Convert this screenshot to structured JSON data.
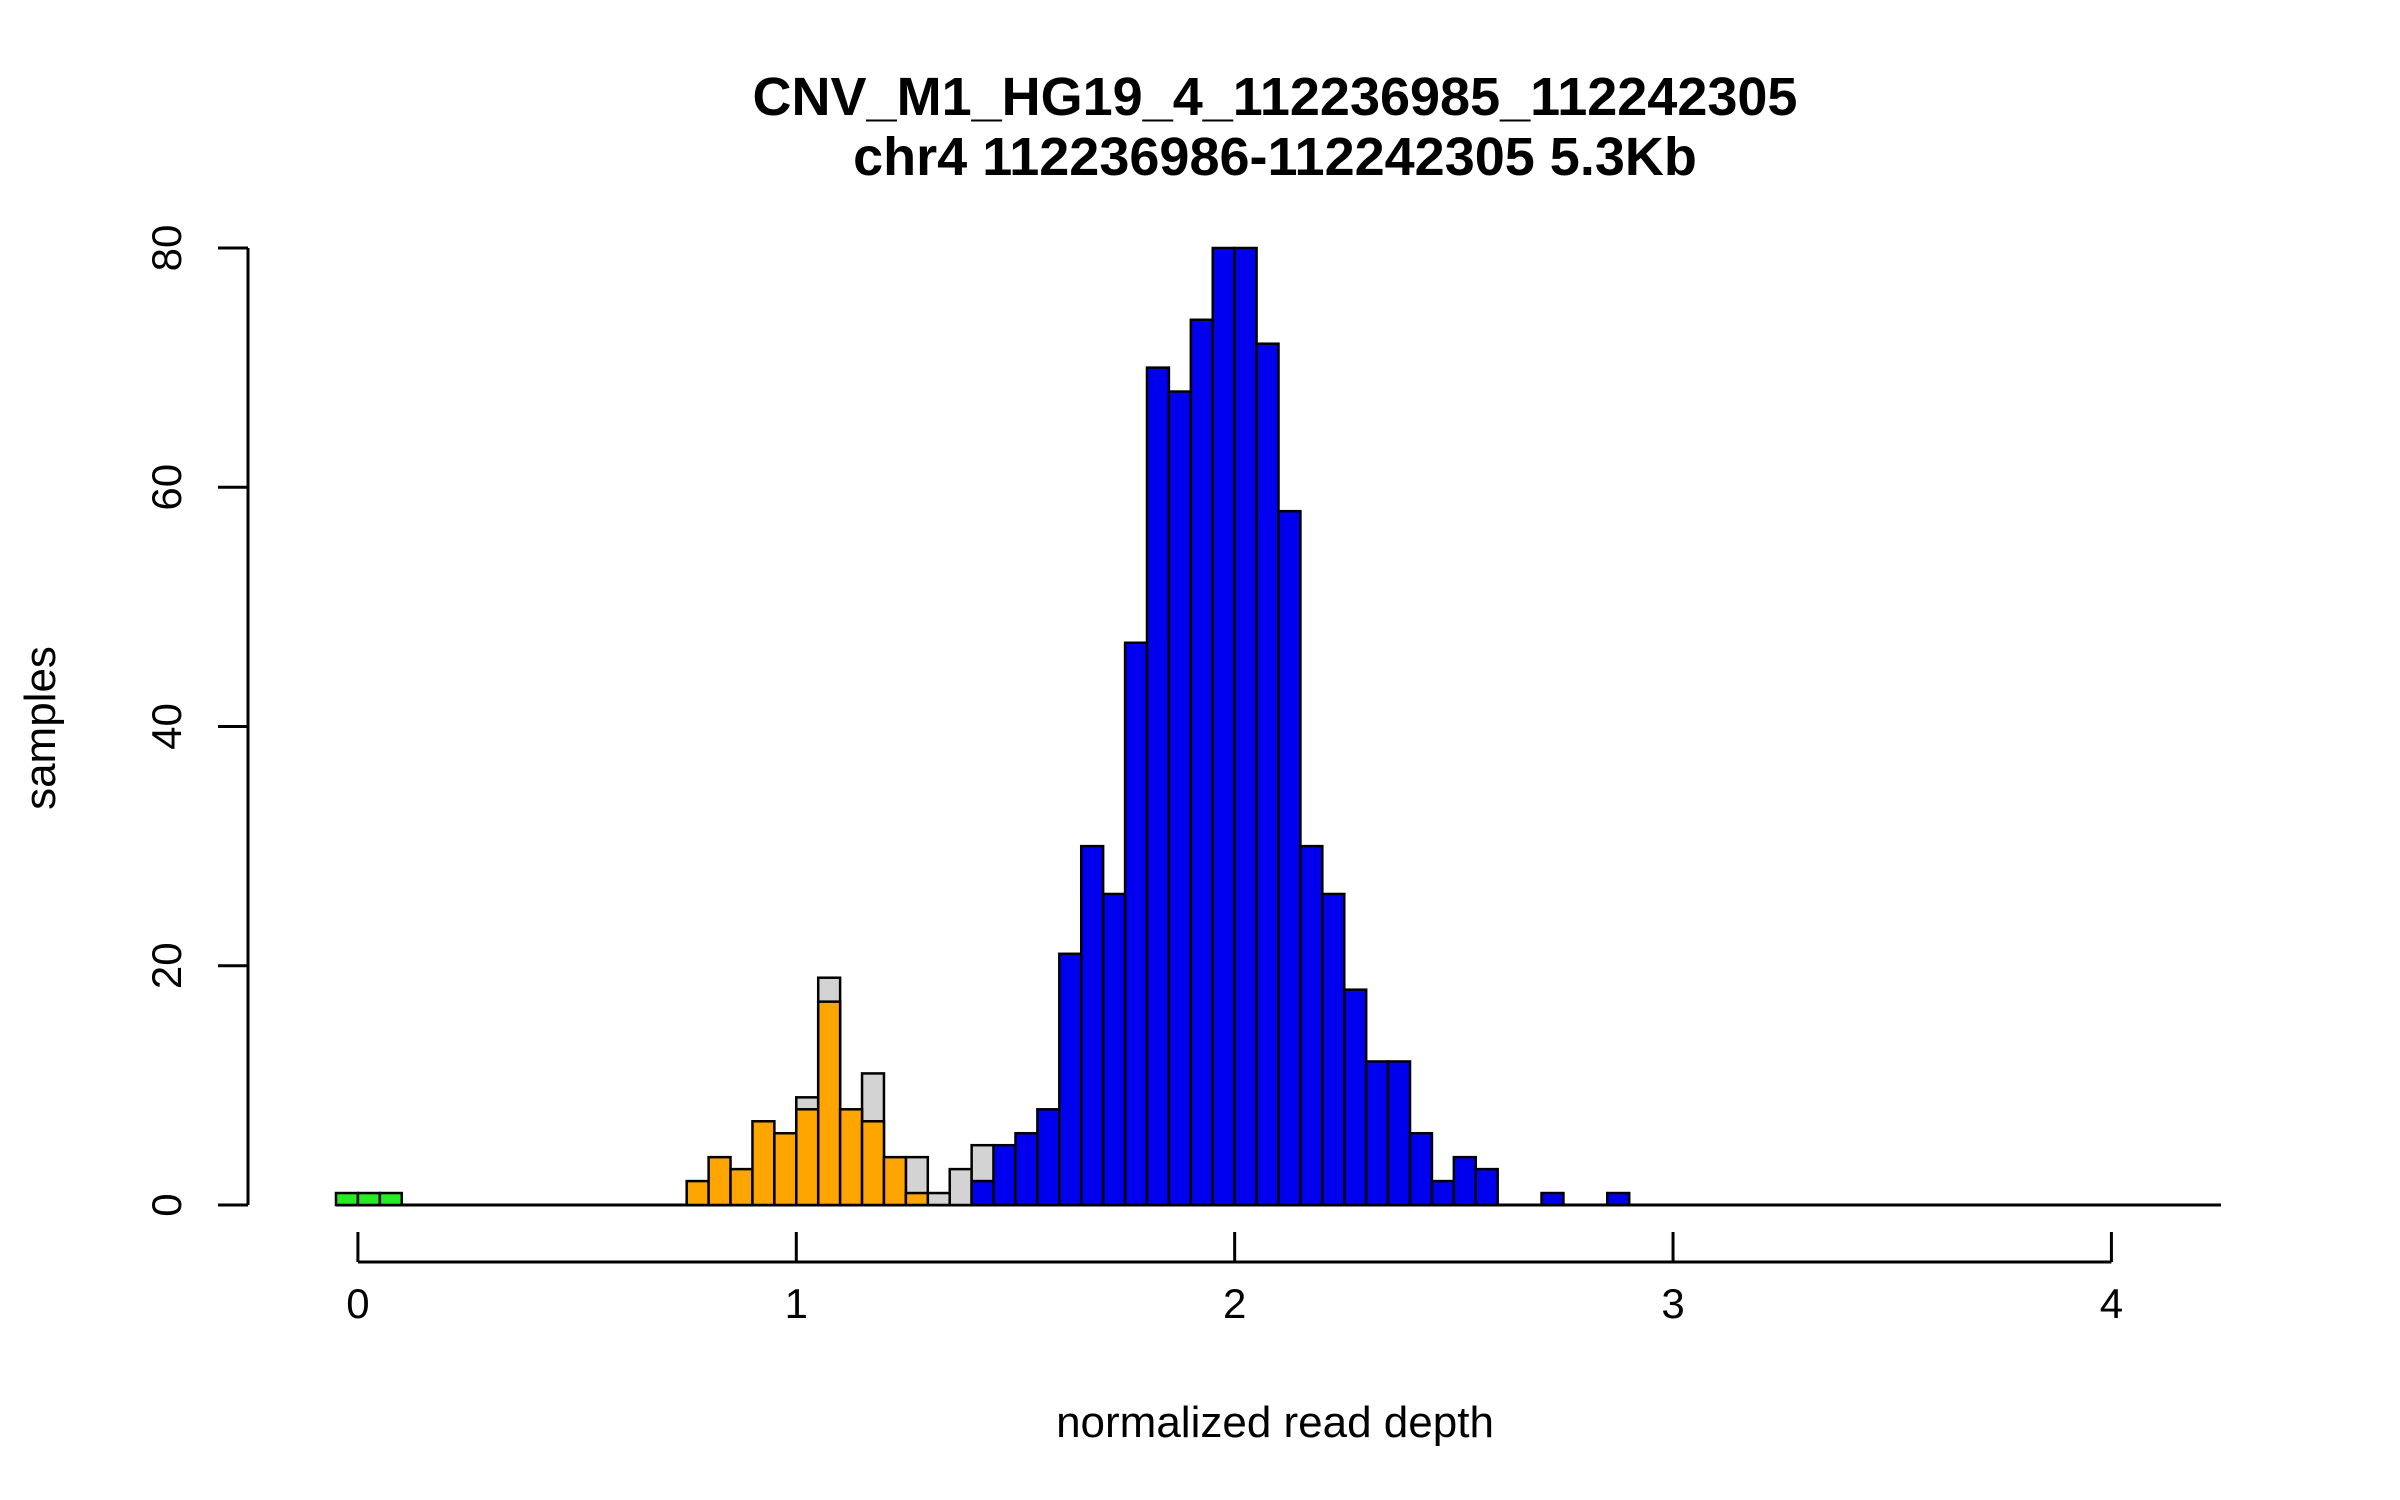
{
  "chart_data": {
    "type": "bar",
    "title": "CNV_M1_HG19_4_112236985_112242305",
    "subtitle": "chr4 112236986-112242305 5.3Kb",
    "xlabel": "normalized read depth",
    "ylabel": "samples",
    "xlim": [
      -0.05,
      4.25
    ],
    "ylim": [
      0,
      80
    ],
    "x_ticks": [
      0,
      1,
      2,
      3,
      4
    ],
    "x_tick_labels": [
      "0",
      "1",
      "2",
      "3",
      "4"
    ],
    "y_ticks": [
      0,
      20,
      40,
      60,
      80
    ],
    "y_tick_labels": [
      "0",
      "20",
      "40",
      "60",
      "80"
    ],
    "bin_width": 0.05,
    "grid": false,
    "legend": "none",
    "colors": {
      "green": "#22ee22",
      "orange": "#ffa500",
      "gray": "#d3d3d3",
      "blue": "#0000ee"
    },
    "series": [
      {
        "color": "green",
        "bins": [
          [
            -0.025,
            1
          ],
          [
            0.025,
            1
          ],
          [
            0.075,
            1
          ]
        ]
      },
      {
        "color": "gray",
        "bins": [
          [
            1.025,
            9
          ],
          [
            1.075,
            19
          ],
          [
            1.175,
            11
          ],
          [
            1.275,
            4
          ],
          [
            1.325,
            1
          ],
          [
            1.375,
            3
          ],
          [
            1.425,
            5
          ]
        ]
      },
      {
        "color": "orange",
        "bins": [
          [
            0.775,
            2
          ],
          [
            0.825,
            4
          ],
          [
            0.875,
            3
          ],
          [
            0.925,
            7
          ],
          [
            0.975,
            6
          ],
          [
            1.025,
            8
          ],
          [
            1.075,
            17
          ],
          [
            1.125,
            8
          ],
          [
            1.175,
            7
          ],
          [
            1.225,
            4
          ],
          [
            1.275,
            1
          ]
        ]
      },
      {
        "color": "blue",
        "bins": [
          [
            1.425,
            2
          ],
          [
            1.475,
            5
          ],
          [
            1.525,
            6
          ],
          [
            1.575,
            8
          ],
          [
            1.625,
            21
          ],
          [
            1.675,
            30
          ],
          [
            1.725,
            26
          ],
          [
            1.775,
            47
          ],
          [
            1.825,
            70
          ],
          [
            1.875,
            68
          ],
          [
            1.925,
            74
          ],
          [
            1.975,
            80
          ],
          [
            2.025,
            80
          ],
          [
            2.075,
            72
          ],
          [
            2.125,
            58
          ],
          [
            2.175,
            30
          ],
          [
            2.225,
            26
          ],
          [
            2.275,
            18
          ],
          [
            2.325,
            12
          ],
          [
            2.375,
            12
          ],
          [
            2.425,
            6
          ],
          [
            2.475,
            2
          ],
          [
            2.525,
            4
          ],
          [
            2.575,
            3
          ],
          [
            2.725,
            1
          ],
          [
            2.875,
            1
          ]
        ]
      }
    ]
  }
}
